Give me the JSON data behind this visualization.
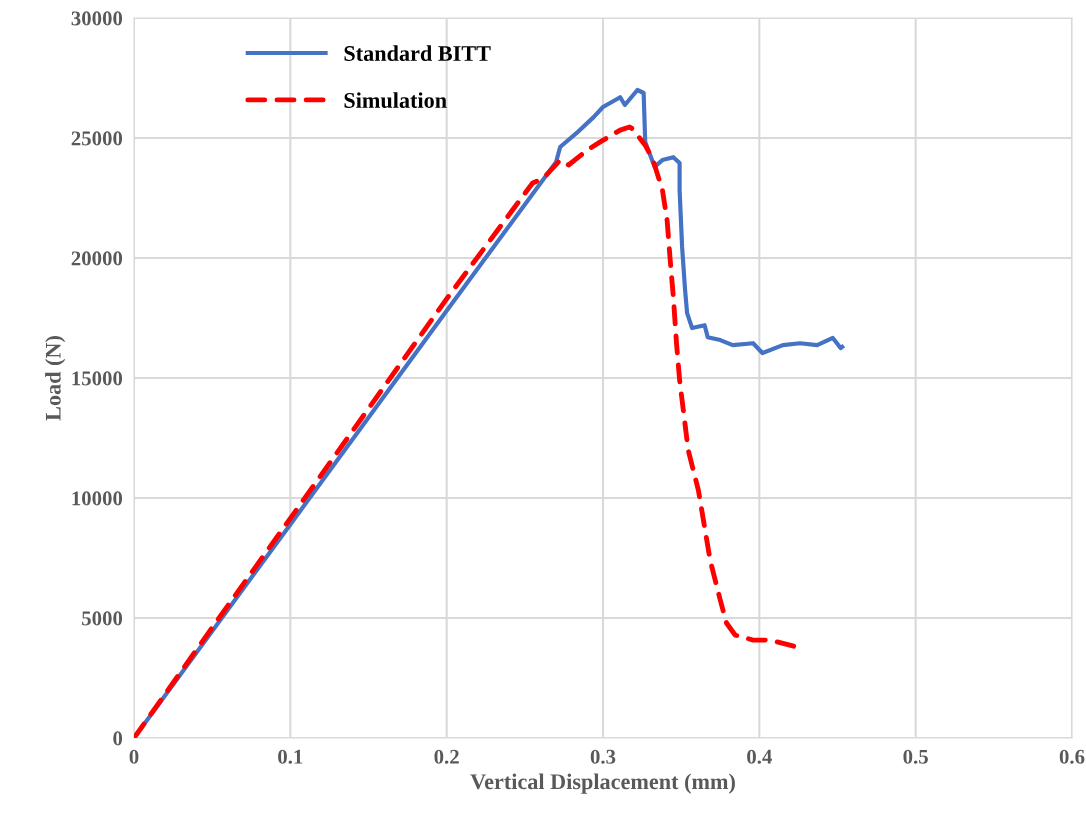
{
  "chart_data": {
    "type": "line",
    "xlabel": "Vertical Displacement (mm)",
    "ylabel": "Load (N)",
    "xlim": [
      0,
      0.6
    ],
    "ylim": [
      0,
      30000
    ],
    "xticks": [
      {
        "value": 0,
        "label": "0"
      },
      0.1,
      0.2,
      0.3,
      0.4,
      0.5,
      0.6
    ],
    "yticks": [
      0,
      5000,
      10000,
      15000,
      20000,
      25000,
      30000
    ],
    "grid": true,
    "legend": "top left",
    "series": [
      {
        "name": "Standard BITT",
        "color": "#4472c4",
        "line_style": "solid",
        "x": [
          0,
          0.1,
          0.2,
          0.27,
          0.2726,
          0.283,
          0.294,
          0.3,
          0.311,
          0.314,
          0.322,
          0.326,
          0.327,
          0.333,
          0.338,
          0.345,
          0.349,
          0.349,
          0.3506,
          0.3525,
          0.3538,
          0.357,
          0.365,
          0.367,
          0.375,
          0.383,
          0.396,
          0.402,
          0.415,
          0.426,
          0.437,
          0.447,
          0.452,
          0.453
        ],
        "values": [
          0,
          8900,
          17800,
          24000,
          24625,
          25200,
          25870,
          26290,
          26700,
          26375,
          27000,
          26875,
          24830,
          23800,
          24080,
          24200,
          23960,
          22830,
          20460,
          18670,
          17700,
          17080,
          17200,
          16700,
          16580,
          16370,
          16450,
          16040,
          16370,
          16450,
          16370,
          16670,
          16250,
          16300
        ]
      },
      {
        "name": "Simulation",
        "color": "#ff0000",
        "line_style": "dashed",
        "x": [
          0,
          0.05,
          0.1,
          0.2,
          0.236,
          0.255,
          0.262,
          0.2726,
          0.278,
          0.29,
          0.298,
          0.311,
          0.317,
          0.319,
          0.327,
          0.332,
          0.338,
          0.341,
          0.343,
          0.345,
          0.347,
          0.349,
          0.3545,
          0.361,
          0.3685,
          0.375,
          0.379,
          0.3845,
          0.396,
          0.407,
          0.424
        ],
        "values": [
          0,
          4600,
          9150,
          18300,
          21460,
          23125,
          23330,
          24080,
          23875,
          24500,
          24830,
          25330,
          25460,
          25375,
          24700,
          24080,
          22830,
          21580,
          19900,
          18375,
          16460,
          14920,
          12000,
          10330,
          7420,
          5750,
          4790,
          4290,
          4080,
          4080,
          3790
        ]
      }
    ]
  }
}
